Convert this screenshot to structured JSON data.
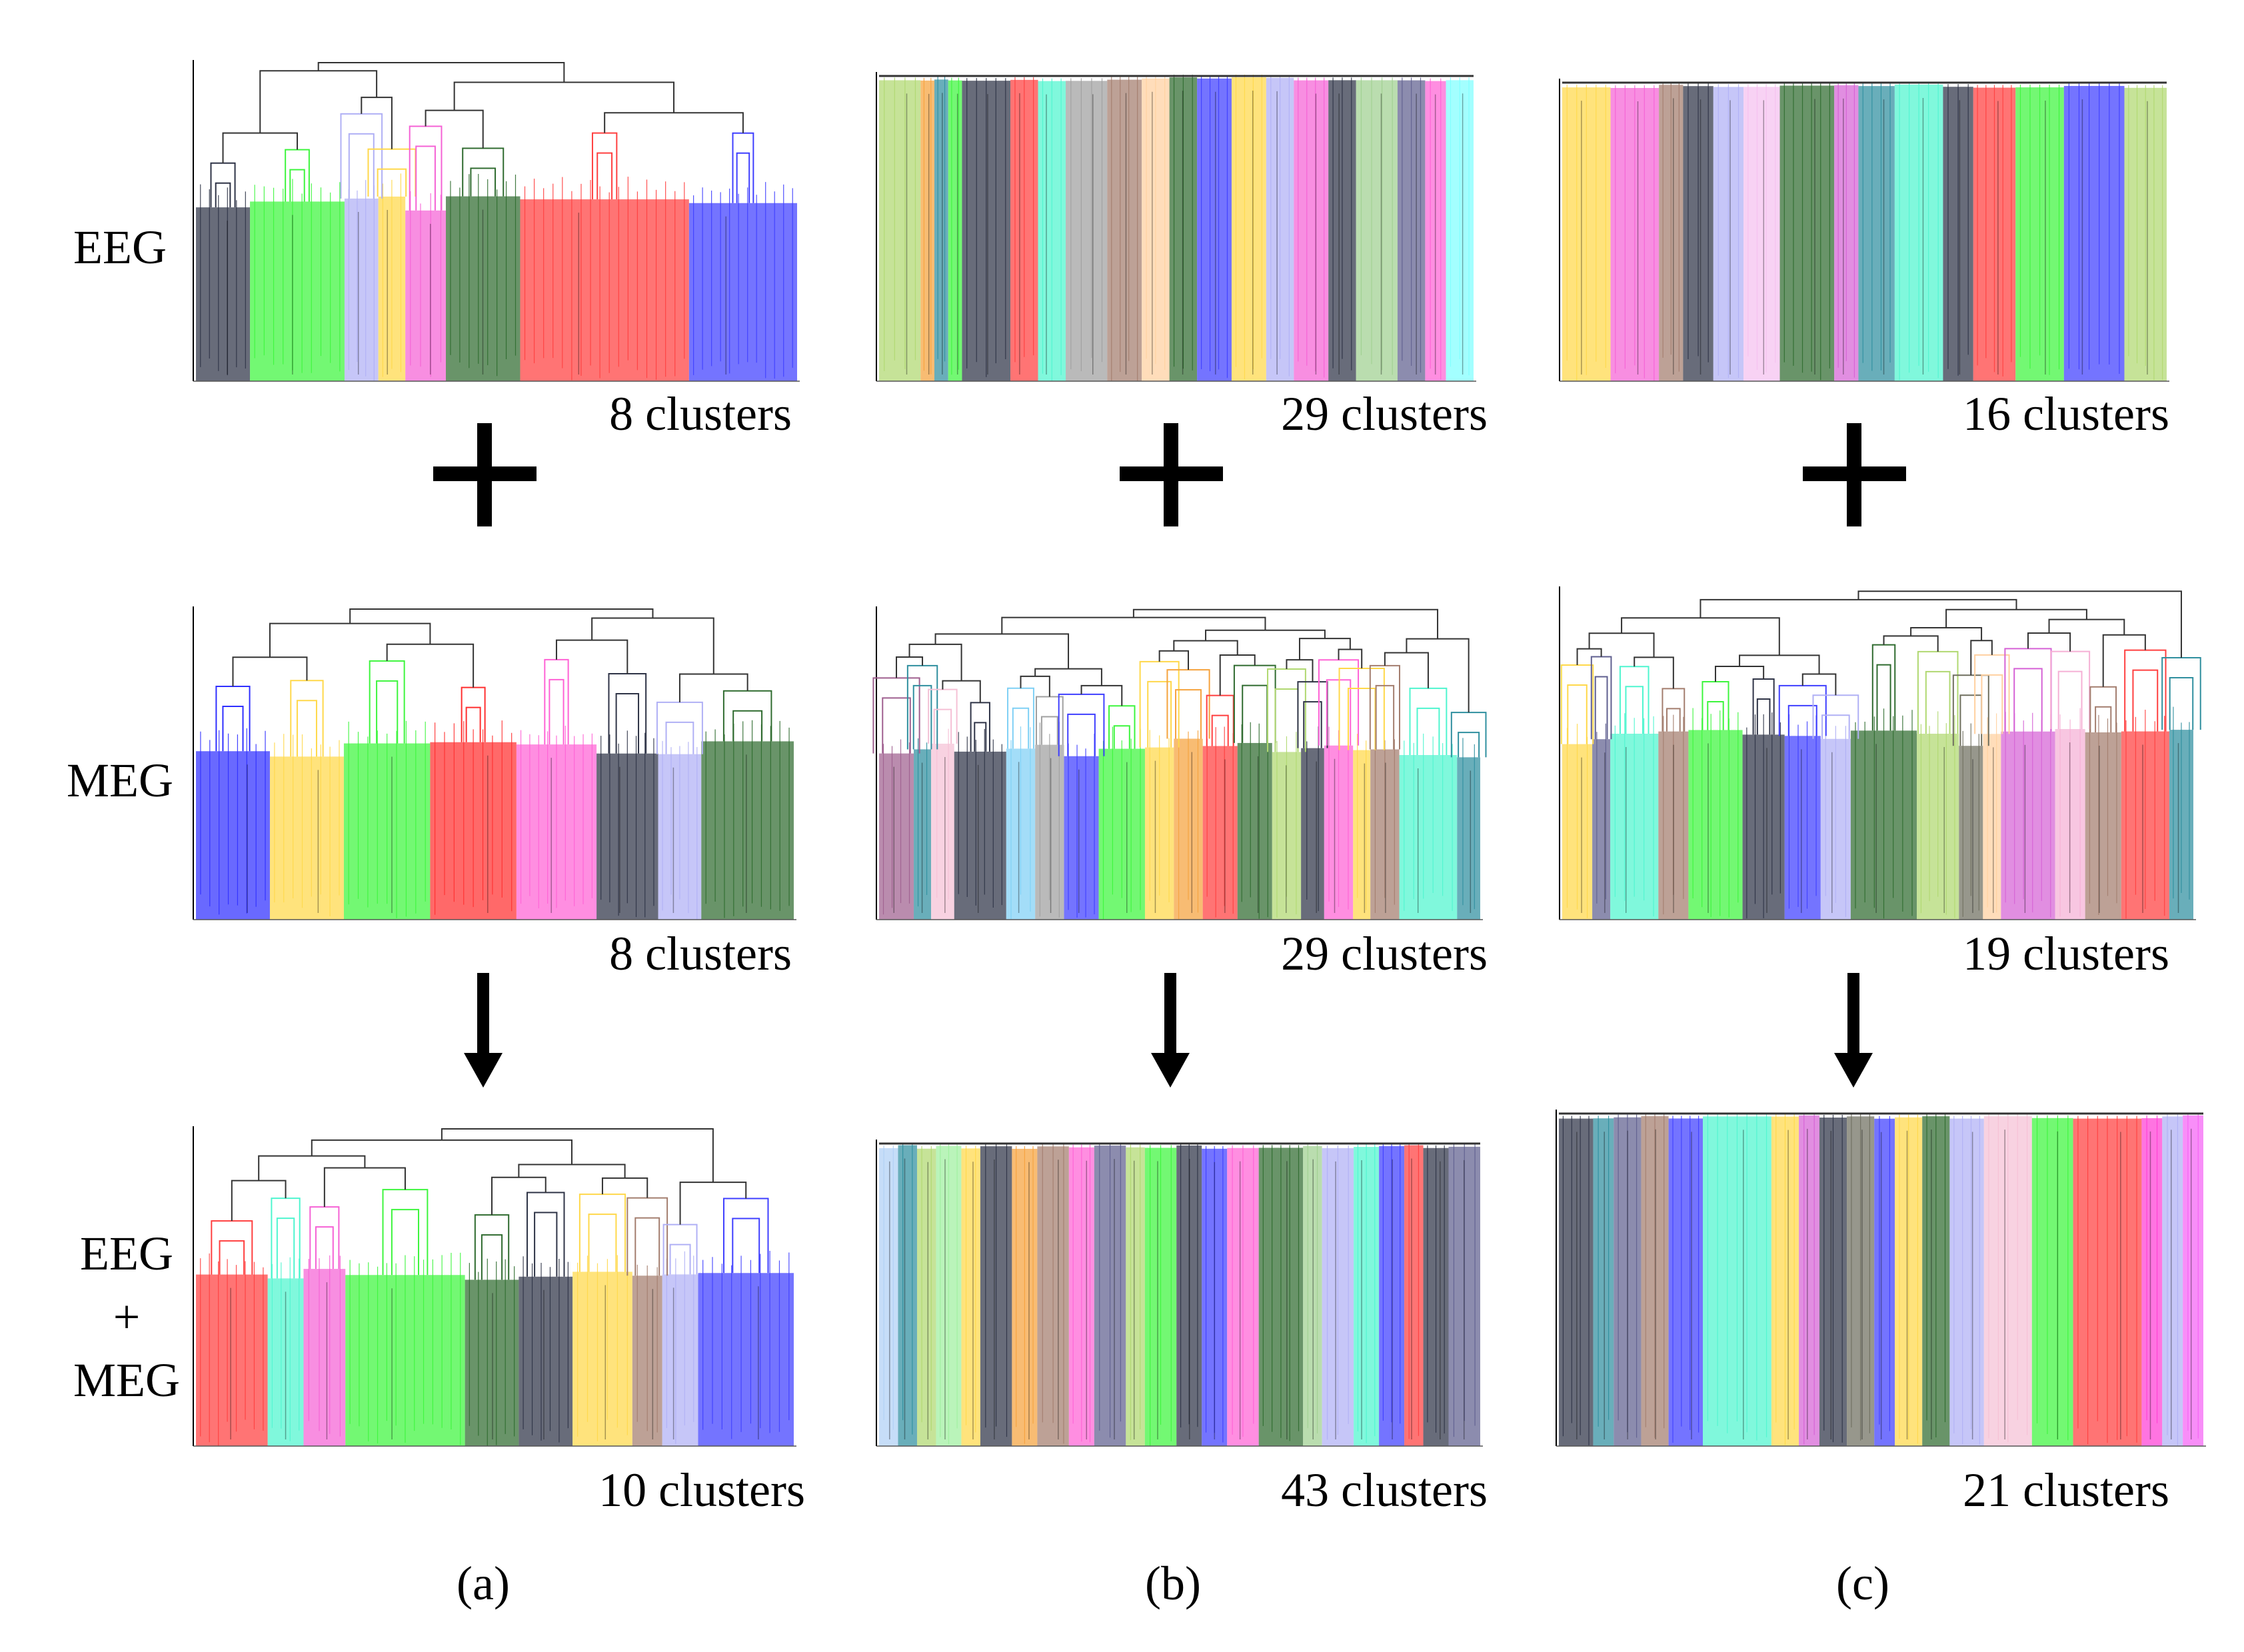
{
  "rows": [
    {
      "id": "eeg",
      "label_lines": [
        "EEG"
      ]
    },
    {
      "id": "meg",
      "label_lines": [
        "MEG"
      ]
    },
    {
      "id": "combined",
      "label_lines": [
        "EEG",
        "+",
        "MEG"
      ]
    }
  ],
  "columns": [
    {
      "id": "a",
      "caption": "(a)",
      "panels": [
        {
          "style": "tree",
          "cluster_label": "8 clusters",
          "colors": [
            "#2e3346",
            "#3df53d",
            "#b0b0f5",
            "#ffd84a",
            "#f562d5",
            "#2f6b2f",
            "#ff3f3f",
            "#3f3fff"
          ],
          "widths": [
            8,
            14,
            5,
            4,
            6,
            11,
            25,
            16
          ]
        },
        {
          "style": "tree",
          "cluster_label": "8 clusters",
          "colors": [
            "#2f2fff",
            "#ffd84a",
            "#3df53d",
            "#ff2f2f",
            "#ff62d5",
            "#2e3346",
            "#b0b0f5",
            "#2f6b2f"
          ],
          "widths": [
            12,
            12,
            14,
            14,
            13,
            10,
            7,
            15
          ]
        },
        {
          "style": "tree",
          "cluster_label": "10 clusters",
          "colors": [
            "#ff3f3f",
            "#4ff5cf",
            "#f562d5",
            "#3df53d",
            "#2f6b2f",
            "#2e3346",
            "#ffd84a",
            "#a37d6e",
            "#b0b0f5",
            "#3f3fff"
          ],
          "widths": [
            12,
            6,
            7,
            20,
            9,
            9,
            10,
            5,
            6,
            16
          ]
        }
      ]
    },
    {
      "id": "b",
      "caption": "(b)",
      "panels": [
        {
          "style": "flat",
          "cluster_label": "29 clusters",
          "colors": [
            "#b0d870",
            "#f5a23d",
            "#2f8f9f",
            "#3df53d",
            "#2e3346",
            "#ff3f3f",
            "#4ff5cf",
            "#a0a0a0",
            "#a37d6e",
            "#ffd0a0",
            "#2f6b2f",
            "#3f3fff",
            "#ffd84a",
            "#b0b0f5",
            "#f562d5",
            "#2e3346",
            "#a0d090",
            "#5f5f8f",
            "#ff62d5",
            "#80ffff"
          ],
          "widths": [
            6,
            2,
            2,
            2,
            7,
            4,
            4,
            6,
            5,
            4,
            4,
            5,
            5,
            4,
            5,
            4,
            6,
            4,
            3,
            4
          ]
        },
        {
          "style": "tree",
          "cluster_label": "29 clusters",
          "colors": [
            "#9f5f8f",
            "#2f8f9f",
            "#f5c0d5",
            "#2e3346",
            "#7fd0f5",
            "#a0a0a0",
            "#3f3fff",
            "#3df53d",
            "#ffd84a",
            "#f5a23d",
            "#ff3f3f",
            "#2f6b2f",
            "#b0d870",
            "#2e3346",
            "#ff62d5",
            "#ffd84a",
            "#a37d6e",
            "#4ff5cf",
            "#2f8f9f"
          ],
          "widths": [
            6,
            3,
            4,
            9,
            5,
            5,
            6,
            8,
            5,
            5,
            6,
            6,
            5,
            4,
            5,
            3,
            5,
            10,
            4
          ]
        },
        {
          "style": "flat",
          "cluster_label": "43 clusters",
          "colors": [
            "#b0d0f5",
            "#2f8f9f",
            "#b0d870",
            "#a0f0a0",
            "#ffd84a",
            "#2e3346",
            "#f5a23d",
            "#a37d6e",
            "#ff62d5",
            "#5f5f8f",
            "#b0d870",
            "#3df53d",
            "#2e3346",
            "#3f3fff",
            "#ff62d5",
            "#2f6b2f",
            "#a0d090",
            "#b0b0f5",
            "#4ff5cf",
            "#3f3fff",
            "#ff3f3f",
            "#2e3346",
            "#5f5f8f"
          ],
          "widths": [
            3,
            3,
            3,
            4,
            3,
            5,
            4,
            5,
            4,
            5,
            3,
            5,
            4,
            4,
            5,
            7,
            3,
            5,
            4,
            4,
            3,
            4,
            5
          ]
        }
      ]
    },
    {
      "id": "c",
      "caption": "(c)",
      "panels": [
        {
          "style": "flat",
          "cluster_label": "16 clusters",
          "colors": [
            "#ffd84a",
            "#f562d5",
            "#a37d6e",
            "#2e3346",
            "#b0b0f5",
            "#f5c0f0",
            "#2f6b2f",
            "#d562d5",
            "#2f8f9f",
            "#4ff5cf",
            "#2e3346",
            "#ff3f3f",
            "#3df53d",
            "#3f3fff",
            "#b0d870"
          ],
          "widths": [
            8,
            8,
            4,
            5,
            5,
            6,
            9,
            4,
            6,
            8,
            5,
            7,
            8,
            10,
            7
          ]
        },
        {
          "style": "tree",
          "cluster_label": "19 clusters",
          "colors": [
            "#ffd84a",
            "#5f5f8f",
            "#4ff5cf",
            "#a37d6e",
            "#3df53d",
            "#2e3346",
            "#3f3fff",
            "#b0b0f5",
            "#2f6b2f",
            "#b0d870",
            "#6f6f5f",
            "#ffd0a0",
            "#d562d5",
            "#f5b0d5",
            "#a37d6e",
            "#ff3f3f",
            "#2f8f9f"
          ],
          "widths": [
            5,
            3,
            8,
            5,
            9,
            7,
            6,
            5,
            11,
            7,
            4,
            3,
            9,
            5,
            6,
            8,
            4
          ]
        },
        {
          "style": "flat",
          "cluster_label": "21 clusters",
          "colors": [
            "#2e3346",
            "#2f8f9f",
            "#5f5f8f",
            "#a37d6e",
            "#3f3fff",
            "#4ff5cf",
            "#ffd84a",
            "#d562d5",
            "#2e3346",
            "#6f6f5f",
            "#3f3fff",
            "#ffd84a",
            "#2f6b2f",
            "#b0b0f5",
            "#f5c0d5",
            "#3df53d",
            "#ff3f3f",
            "#ff3fd5",
            "#b0b0f5",
            "#f562f5"
          ],
          "widths": [
            5,
            3,
            4,
            4,
            5,
            10,
            4,
            3,
            4,
            4,
            3,
            4,
            4,
            5,
            7,
            6,
            10,
            3,
            3,
            3
          ]
        }
      ]
    }
  ],
  "operators": {
    "plus": "+",
    "arrow": "down-arrow"
  }
}
